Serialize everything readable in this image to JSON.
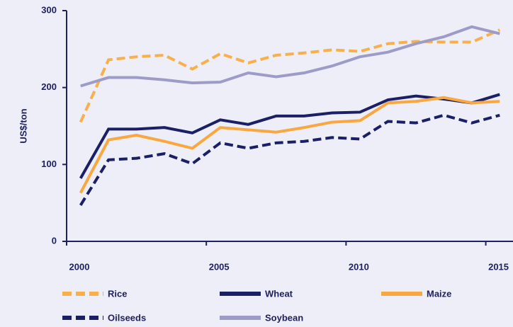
{
  "chart_data": {
    "type": "line",
    "ylabel": "US$/ton",
    "x": [
      2000.5,
      2001.5,
      2002.5,
      2003.5,
      2004.5,
      2005.5,
      2006.5,
      2007.5,
      2008.5,
      2009.5,
      2010.5,
      2011.5,
      2012.5,
      2013.5,
      2014.5,
      2015.5
    ],
    "xlim": [
      2000,
      2016
    ],
    "xticks": [
      2000,
      2005,
      2010,
      2015
    ],
    "ylim": [
      0,
      300
    ],
    "yticks": [
      0,
      100,
      200,
      300
    ],
    "series": [
      {
        "name": "Rice",
        "color": "#f9b04a",
        "dashed": true,
        "values": [
          155,
          236,
          240,
          242,
          224,
          244,
          232,
          242,
          245,
          249,
          247,
          257,
          260,
          259,
          259,
          275
        ]
      },
      {
        "name": "Wheat",
        "color": "#1b1f66",
        "dashed": false,
        "values": [
          82,
          146,
          146,
          148,
          141,
          158,
          152,
          163,
          163,
          167,
          168,
          184,
          189,
          185,
          180,
          191
        ]
      },
      {
        "name": "Maize",
        "color": "#f9a73e",
        "dashed": false,
        "values": [
          63,
          132,
          138,
          130,
          121,
          148,
          145,
          142,
          148,
          155,
          157,
          180,
          182,
          187,
          180,
          182
        ]
      },
      {
        "name": "Oilseeds",
        "color": "#1b1f66",
        "dashed": true,
        "values": [
          47,
          106,
          108,
          114,
          101,
          128,
          121,
          128,
          130,
          135,
          133,
          156,
          154,
          164,
          154,
          164
        ]
      },
      {
        "name": "Soybean",
        "color": "#9d9cc8",
        "dashed": false,
        "values": [
          202,
          213,
          213,
          210,
          206,
          207,
          219,
          214,
          219,
          228,
          240,
          246,
          257,
          266,
          279,
          270
        ]
      }
    ]
  }
}
